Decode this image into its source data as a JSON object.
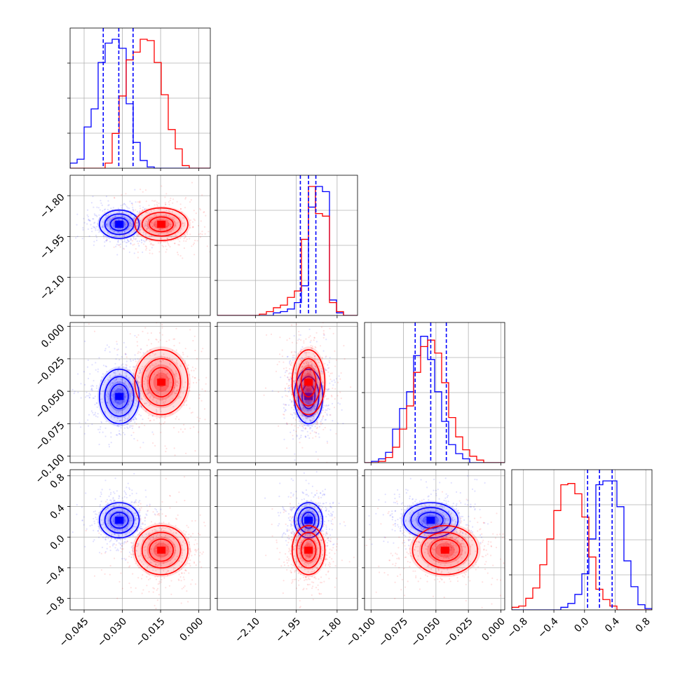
{
  "chart_data": {
    "type": "corner",
    "parameters": [
      {
        "ticks": [
          -0.045,
          -0.03,
          -0.015,
          0.0
        ],
        "tick_labels": [
          "−0.045",
          "−0.030",
          "−0.015",
          "0.000"
        ],
        "range": [
          -0.0505,
          0.0045
        ]
      },
      {
        "ticks": [
          -2.1,
          -1.95,
          -1.8
        ],
        "tick_labels": [
          "−2.10",
          "−1.95",
          "−1.80"
        ],
        "range": [
          -2.24,
          -1.725
        ]
      },
      {
        "ticks": [
          -0.1,
          -0.075,
          -0.05,
          -0.025,
          0.0
        ],
        "tick_labels": [
          "−0.100",
          "−0.075",
          "−0.050",
          "−0.025",
          "0.000"
        ],
        "range": [
          -0.105,
          0.003
        ]
      },
      {
        "ticks": [
          -0.8,
          -0.4,
          0.0,
          0.4,
          0.8
        ],
        "tick_labels": [
          "−0.8",
          "−0.4",
          "0.0",
          "0.4",
          "0.8"
        ],
        "range": [
          -0.95,
          0.88
        ]
      }
    ],
    "series": [
      {
        "color": "#0000ff",
        "mean": [
          -0.0312,
          -1.905,
          -0.054,
          0.22
        ],
        "std": [
          0.0039,
          0.026,
          0.0105,
          0.115
        ],
        "quantiles": [
          [
            -0.0375,
            -0.0314,
            -0.0258
          ],
          [
            -1.935,
            -1.905,
            -1.878
          ],
          [
            -0.066,
            -0.054,
            -0.042
          ],
          [
            0.04,
            0.195,
            0.36
          ]
        ],
        "hist": [
          {
            "edges": [
              -0.0505,
              0.0045
            ],
            "counts": [
              0.04,
              0.07,
              0.32,
              0.46,
              0.82,
              0.97,
              1.0,
              0.93,
              0.5,
              0.2,
              0.06,
              0.01,
              0.0,
              0.0,
              0.0,
              0.0,
              0.0,
              0.0,
              0.0,
              0.0
            ]
          },
          {
            "edges": [
              -2.24,
              -1.725
            ],
            "counts": [
              0.0,
              0.0,
              0.0,
              0.0,
              0.0,
              0.0,
              0.0,
              0.0,
              0.02,
              0.03,
              0.05,
              0.1,
              0.23,
              0.84,
              1.0,
              0.96,
              0.12,
              0.02,
              0.0,
              0.0
            ]
          },
          {
            "edges": [
              -0.105,
              0.003
            ],
            "counts": [
              0.0,
              0.01,
              0.03,
              0.08,
              0.26,
              0.42,
              0.55,
              0.83,
              0.98,
              0.8,
              0.55,
              0.32,
              0.14,
              0.07,
              0.03,
              0.0,
              0.0,
              0.0,
              0.0,
              0.0
            ]
          },
          {
            "edges": [
              -0.95,
              0.88
            ],
            "counts": [
              0.0,
              0.0,
              0.0,
              0.0,
              0.0,
              0.0,
              0.0,
              0.02,
              0.05,
              0.12,
              0.28,
              0.55,
              0.97,
              1.0,
              1.0,
              0.8,
              0.38,
              0.18,
              0.04,
              0.01
            ]
          }
        ]
      },
      {
        "color": "#ff0000",
        "mean": [
          -0.0147,
          -1.905,
          -0.043,
          -0.17
        ],
        "std": [
          0.0052,
          0.03,
          0.0125,
          0.16
        ],
        "hist": [
          {
            "edges": [
              -0.0505,
              0.0045
            ],
            "counts": [
              0.0,
              0.0,
              0.0,
              0.0,
              0.0,
              0.04,
              0.27,
              0.56,
              0.84,
              0.9,
              1.0,
              0.99,
              0.82,
              0.57,
              0.3,
              0.15,
              0.02,
              0.0,
              0.0,
              0.0
            ]
          },
          {
            "edges": [
              -2.24,
              -1.725
            ],
            "counts": [
              0.0,
              0.0,
              0.0,
              0.0,
              0.0,
              0.0,
              0.01,
              0.03,
              0.06,
              0.08,
              0.14,
              0.19,
              0.59,
              1.0,
              0.79,
              0.77,
              0.1,
              0.03,
              0.0,
              0.0
            ]
          },
          {
            "edges": [
              -0.105,
              0.003
            ],
            "counts": [
              0.0,
              0.0,
              0.01,
              0.04,
              0.12,
              0.26,
              0.44,
              0.7,
              0.9,
              0.95,
              0.85,
              0.62,
              0.35,
              0.2,
              0.1,
              0.05,
              0.02,
              0.0,
              0.0,
              0.0
            ]
          },
          {
            "edges": [
              -0.95,
              0.88
            ],
            "counts": [
              0.02,
              0.03,
              0.09,
              0.17,
              0.35,
              0.55,
              0.77,
              0.97,
              0.98,
              0.9,
              0.72,
              0.41,
              0.16,
              0.08,
              0.03,
              0.0,
              0.0,
              0.0,
              0.0,
              0.0
            ]
          }
        ]
      }
    ],
    "quantile_lines": {
      "style": "dashed",
      "color": "#0000ff",
      "series": 0
    },
    "contour_levels": 3,
    "grid": true,
    "title": "",
    "xlabel": "",
    "ylabel": ""
  }
}
